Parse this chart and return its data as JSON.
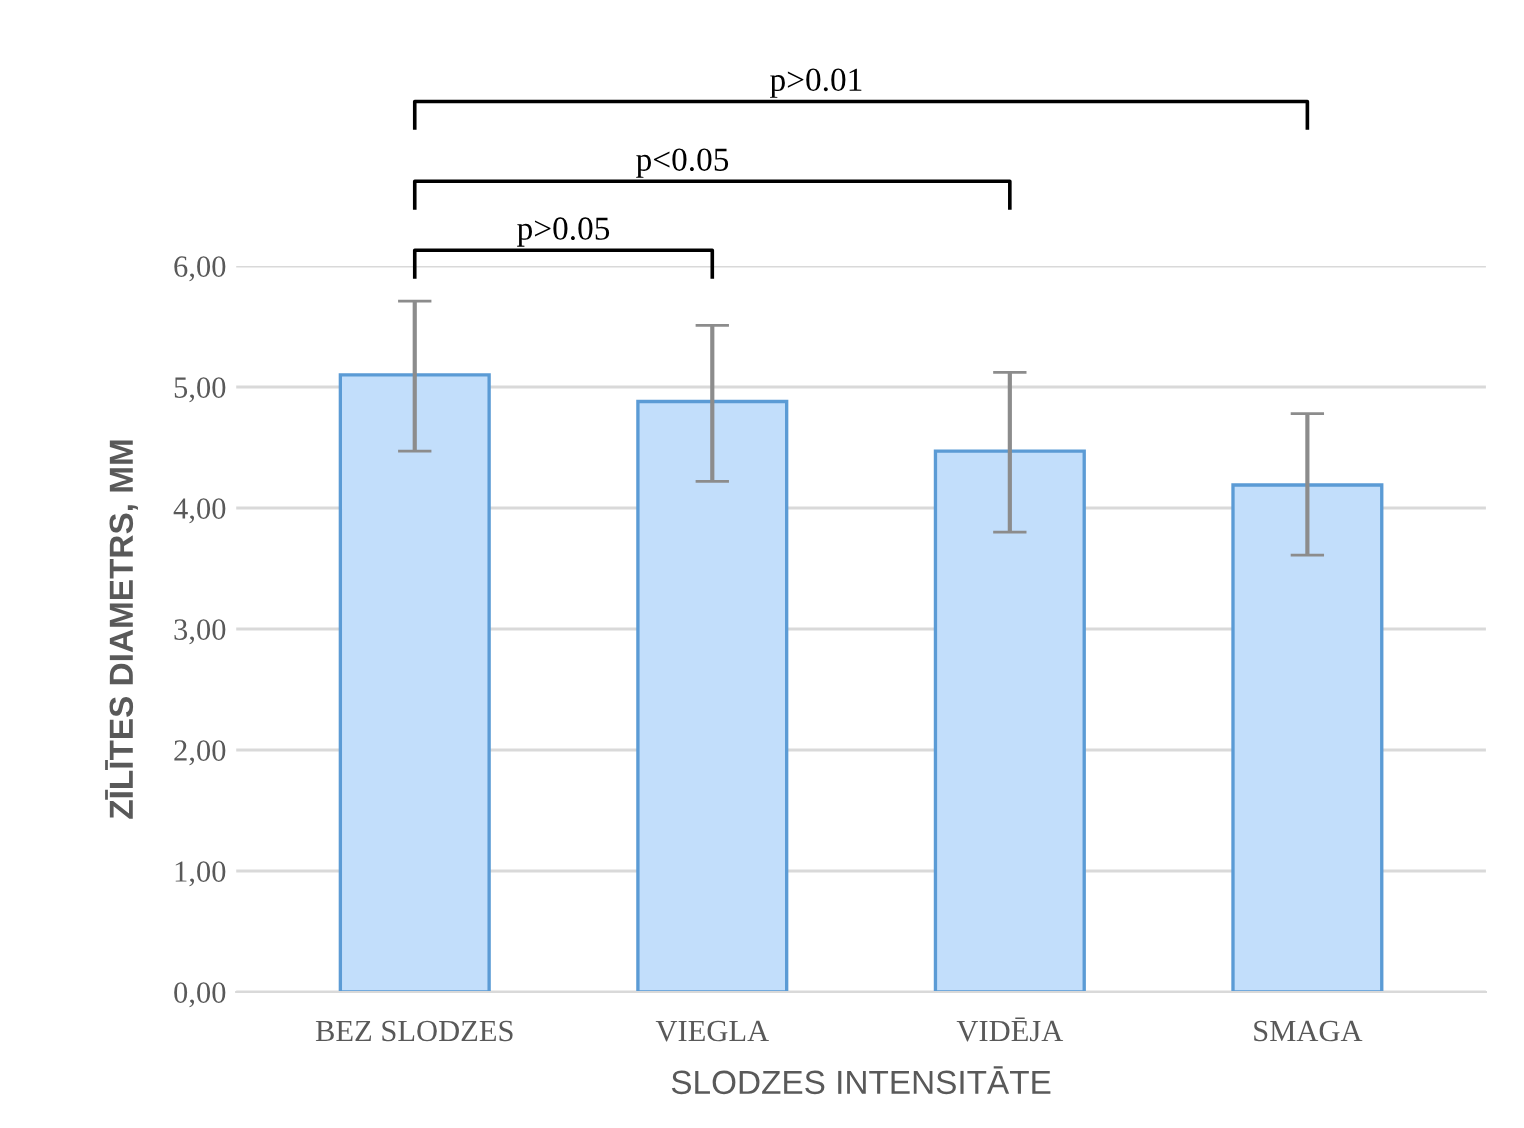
{
  "chart_data": {
    "type": "bar",
    "xlabel": "SLODZES INTENSITĀTE",
    "ylabel": "ZĪLĪTES DIAMETRS, MM",
    "categories": [
      "BEZ SLODZES",
      "VIEGLA",
      "VIDĒJA",
      "SMAGA"
    ],
    "values": [
      5.1,
      4.88,
      4.47,
      4.19
    ],
    "errors": [
      [
        4.47,
        5.71
      ],
      [
        4.22,
        5.51
      ],
      [
        3.8,
        5.12
      ],
      [
        3.61,
        4.78
      ]
    ],
    "color": "#c2defb",
    "ylim": [
      0,
      6
    ],
    "yticks": [
      {
        "value": 0,
        "label": "0,00"
      },
      {
        "value": 1,
        "label": "1,00"
      },
      {
        "value": 2,
        "label": "2,00"
      },
      {
        "value": 3,
        "label": "3,00"
      },
      {
        "value": 4,
        "label": "4,00"
      },
      {
        "value": 5,
        "label": "5,00"
      },
      {
        "value": 6,
        "label": "6,00"
      }
    ],
    "grid": "y",
    "annotations": [
      "p>0.05",
      "p<0.05",
      "p>0.01"
    ]
  }
}
